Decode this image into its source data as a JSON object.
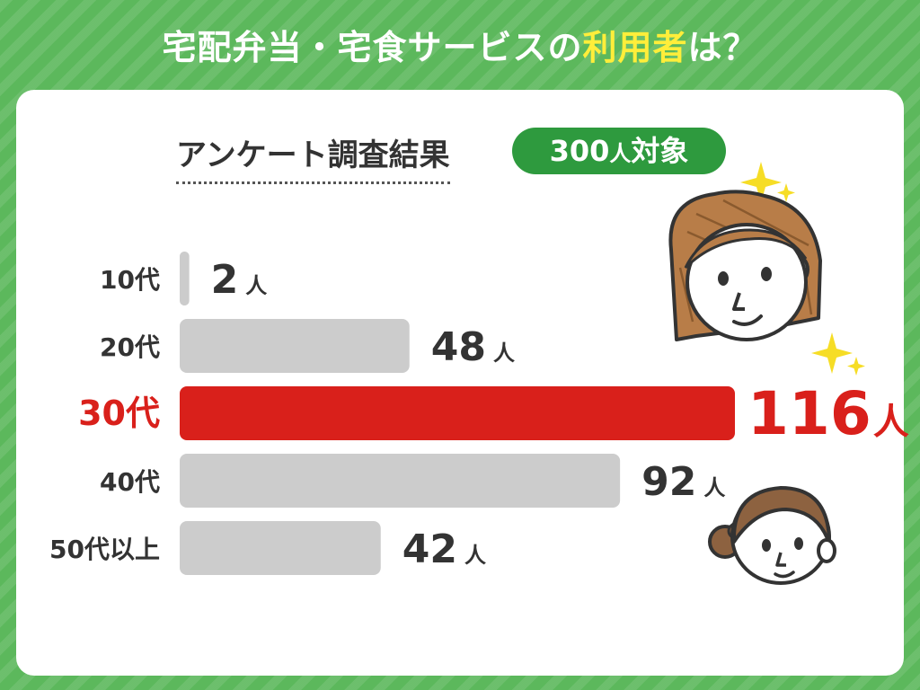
{
  "title": {
    "prefix": "宅配弁当・宅食サービスの",
    "highlight": "利用者",
    "suffix": "は？"
  },
  "survey": {
    "label": "アンケート調査結果",
    "count": "300",
    "count_unit": "人",
    "target": "対象"
  },
  "colors": {
    "background": "#5cb85c",
    "title_highlight": "#ffee3a",
    "pill": "#2e9a3e",
    "bar": "#cccccc",
    "highlight_bar": "#d9201b",
    "label": "#333333"
  },
  "chart_data": {
    "type": "bar",
    "orientation": "horizontal",
    "categories": [
      "10代",
      "20代",
      "30代",
      "40代",
      "50代以上"
    ],
    "values": [
      2,
      48,
      116,
      92,
      42
    ],
    "value_unit": "人",
    "highlight_index": 2,
    "title": "",
    "xlabel": "",
    "ylabel": "",
    "xlim": [
      0,
      116
    ],
    "grid": false,
    "legend": "none"
  }
}
